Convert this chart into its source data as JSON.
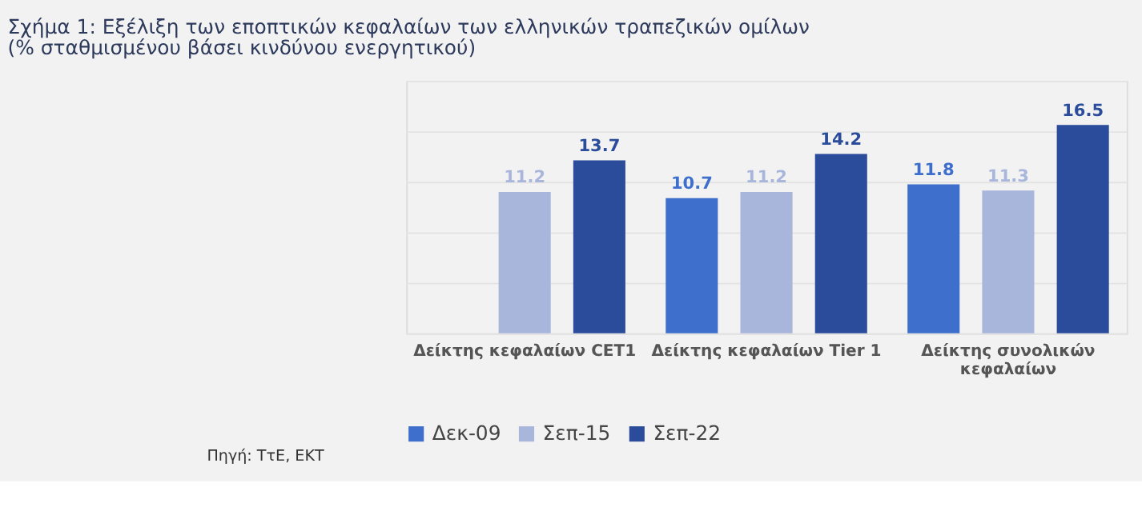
{
  "chart_data": {
    "type": "bar",
    "title": "Σχήμα 1: Εξέλιξη των εποπτικών κεφαλαίων των ελληνικών τραπεζικών ομίλων",
    "subtitle": "(% σταθμισμένου βάσει κινδύνου ενεργητικού)",
    "categories": [
      "Δείκτης κεφαλαίων CET1",
      "Δείκτης κεφαλαίων Tier 1",
      "Δείκτης συνολικών κεφαλαίων"
    ],
    "series": [
      {
        "name": "Δεκ-09",
        "color": "#3f6fcc",
        "values": [
          null,
          10.7,
          11.8
        ]
      },
      {
        "name": "Σεπ-15",
        "color": "#a9b6dc",
        "values": [
          11.2,
          11.2,
          11.3
        ]
      },
      {
        "name": "Σεπ-22",
        "color": "#2b4c9b",
        "values": [
          13.7,
          14.2,
          16.5
        ]
      }
    ],
    "ylim": [
      0,
      20
    ],
    "yticks": [
      {
        "value": 0,
        "label": null
      },
      {
        "value": 4,
        "label": null
      },
      {
        "value": 8,
        "label": null
      },
      {
        "value": 12,
        "label": null
      },
      {
        "value": 16,
        "label": null
      },
      {
        "value": 20,
        "label": null
      }
    ],
    "grid": "y",
    "tick_labels": "x",
    "data_labels": true,
    "legend": "bottom",
    "annotations": [
      "Πηγή: ΤτΕ, ΕΚΤ"
    ]
  }
}
